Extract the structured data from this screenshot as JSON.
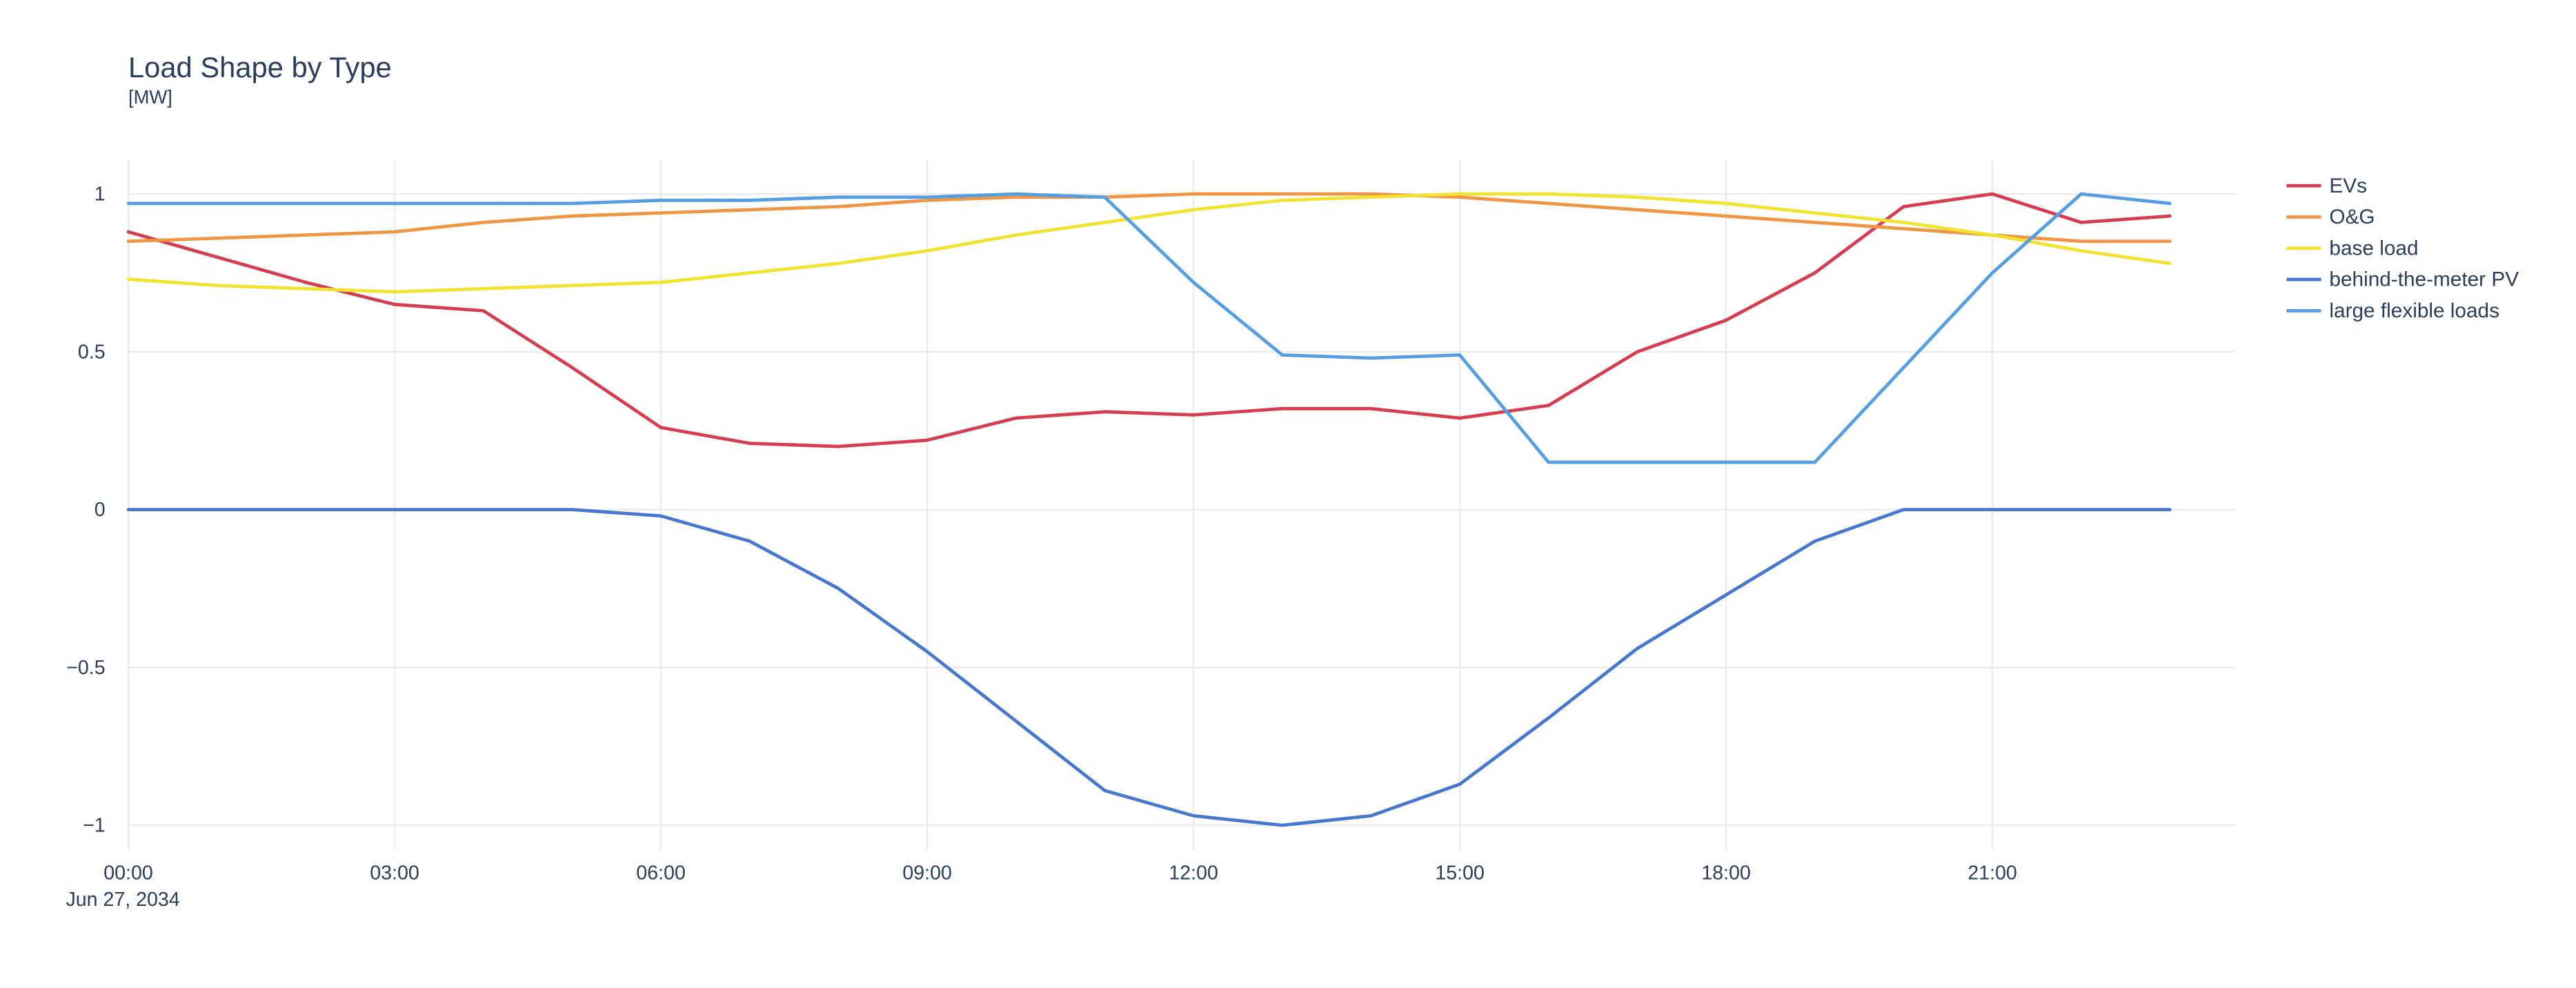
{
  "chart": {
    "title": "Load Shape by Type",
    "units_label": "[MW]",
    "date_label": "Jun 27, 2034"
  },
  "chart_data": {
    "type": "line",
    "title": "Load Shape by Type",
    "ylabel": "[MW]",
    "xlabel": "",
    "x_axis_date": "Jun 27, 2034",
    "ylim": [
      -1.05,
      1.05
    ],
    "grid": true,
    "legend_position": "right",
    "colors": {
      "text": "#2a3f5f",
      "grid": "#ebebeb",
      "background": "#ffffff"
    },
    "x_hours": [
      "00:00",
      "01:00",
      "02:00",
      "03:00",
      "04:00",
      "05:00",
      "06:00",
      "07:00",
      "08:00",
      "09:00",
      "10:00",
      "11:00",
      "12:00",
      "13:00",
      "14:00",
      "15:00",
      "16:00",
      "17:00",
      "18:00",
      "19:00",
      "20:00",
      "21:00",
      "22:00",
      "23:00"
    ],
    "xticks": [
      {
        "label": "00:00",
        "hour": 0
      },
      {
        "label": "03:00",
        "hour": 3
      },
      {
        "label": "06:00",
        "hour": 6
      },
      {
        "label": "09:00",
        "hour": 9
      },
      {
        "label": "12:00",
        "hour": 12
      },
      {
        "label": "15:00",
        "hour": 15
      },
      {
        "label": "18:00",
        "hour": 18
      },
      {
        "label": "21:00",
        "hour": 21
      }
    ],
    "yticks": [
      {
        "label": "1",
        "value": 1
      },
      {
        "label": "0.5",
        "value": 0.5
      },
      {
        "label": "0",
        "value": 0
      },
      {
        "label": "−0.5",
        "value": -0.5
      },
      {
        "label": "−1",
        "value": -1
      }
    ],
    "series": [
      {
        "name": "EVs",
        "color": "#d63d51",
        "values": [
          0.88,
          0.8,
          0.72,
          0.65,
          0.63,
          0.45,
          0.26,
          0.21,
          0.2,
          0.22,
          0.29,
          0.31,
          0.3,
          0.32,
          0.32,
          0.29,
          0.33,
          0.5,
          0.6,
          0.75,
          0.96,
          1.0,
          0.91,
          0.93
        ]
      },
      {
        "name": "O&G",
        "color": "#ef9544",
        "values": [
          0.85,
          0.86,
          0.87,
          0.88,
          0.91,
          0.93,
          0.94,
          0.95,
          0.96,
          0.98,
          0.99,
          0.99,
          1.0,
          1.0,
          1.0,
          0.99,
          0.97,
          0.95,
          0.93,
          0.91,
          0.89,
          0.87,
          0.85,
          0.85
        ]
      },
      {
        "name": "base load",
        "color": "#f2e331",
        "values": [
          0.73,
          0.71,
          0.7,
          0.69,
          0.7,
          0.71,
          0.72,
          0.75,
          0.78,
          0.82,
          0.87,
          0.91,
          0.95,
          0.98,
          0.99,
          1.0,
          1.0,
          0.99,
          0.97,
          0.94,
          0.91,
          0.87,
          0.82,
          0.78
        ]
      },
      {
        "name": "behind-the-meter PV",
        "color": "#4678d2",
        "values": [
          0,
          0,
          0,
          0,
          0,
          0,
          -0.02,
          -0.1,
          -0.25,
          -0.45,
          -0.67,
          -0.89,
          -0.97,
          -1.0,
          -0.97,
          -0.87,
          -0.66,
          -0.44,
          -0.27,
          -0.1,
          0,
          0,
          0,
          0
        ]
      },
      {
        "name": "large flexible loads",
        "color": "#549fe3",
        "values": [
          0.97,
          0.97,
          0.97,
          0.97,
          0.97,
          0.97,
          0.98,
          0.98,
          0.99,
          0.99,
          1.0,
          0.99,
          0.72,
          0.49,
          0.48,
          0.49,
          0.15,
          0.15,
          0.15,
          0.15,
          0.45,
          0.75,
          1.0,
          0.97
        ]
      }
    ]
  }
}
